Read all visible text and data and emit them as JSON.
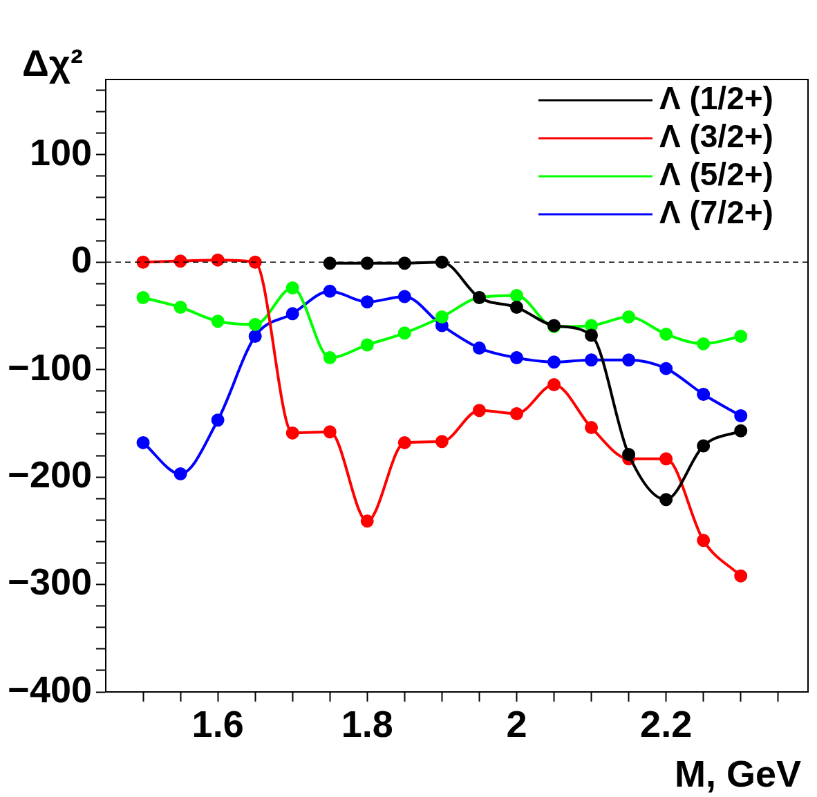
{
  "chart_data": {
    "type": "line",
    "xlabel": "M, GeV",
    "ylabel": "Δχ²",
    "xlim": [
      1.45,
      2.39
    ],
    "ylim": [
      -400,
      170
    ],
    "xticks": [
      {
        "value": 1.5,
        "label": null
      },
      {
        "value": 1.55,
        "label": null
      },
      1.6,
      {
        "value": 1.65,
        "label": null
      },
      {
        "value": 1.7,
        "label": null
      },
      {
        "value": 1.75,
        "label": null
      },
      1.8,
      {
        "value": 1.85,
        "label": null
      },
      {
        "value": 1.9,
        "label": null
      },
      {
        "value": 1.95,
        "label": null
      },
      2,
      {
        "value": 2.05,
        "label": null
      },
      {
        "value": 2.1,
        "label": null
      },
      {
        "value": 2.15,
        "label": null
      },
      2.2,
      {
        "value": 2.25,
        "label": null
      },
      {
        "value": 2.3,
        "label": null
      },
      {
        "value": 2.35,
        "label": null
      }
    ],
    "yticks": [
      {
        "value": -400,
        "label": "−400"
      },
      {
        "value": -380,
        "label": null
      },
      {
        "value": -360,
        "label": null
      },
      {
        "value": -340,
        "label": null
      },
      {
        "value": -320,
        "label": null
      },
      {
        "value": -300,
        "label": "−300"
      },
      {
        "value": -280,
        "label": null
      },
      {
        "value": -260,
        "label": null
      },
      {
        "value": -240,
        "label": null
      },
      {
        "value": -220,
        "label": null
      },
      {
        "value": -200,
        "label": "−200"
      },
      {
        "value": -180,
        "label": null
      },
      {
        "value": -160,
        "label": null
      },
      {
        "value": -140,
        "label": null
      },
      {
        "value": -120,
        "label": null
      },
      {
        "value": -100,
        "label": "−100"
      },
      {
        "value": -80,
        "label": null
      },
      {
        "value": -60,
        "label": null
      },
      {
        "value": -40,
        "label": null
      },
      {
        "value": -20,
        "label": null
      },
      0,
      {
        "value": 20,
        "label": null
      },
      {
        "value": 40,
        "label": null
      },
      {
        "value": 60,
        "label": null
      },
      {
        "value": 80,
        "label": null
      },
      100,
      {
        "value": 120,
        "label": null
      },
      {
        "value": 140,
        "label": null
      },
      {
        "value": 160,
        "label": null
      }
    ],
    "grid": false,
    "legend": "top right",
    "marker": "circle",
    "line_style": "solid",
    "ref_lines": [
      {
        "axis": "y",
        "value": 0,
        "color": "#000000",
        "line_style": "dashed"
      }
    ],
    "series": [
      {
        "name": "Λ (1/2+)",
        "color": "#000000",
        "x": [
          1.75,
          1.8,
          1.85,
          1.9,
          1.95,
          2.0,
          2.05,
          2.1,
          2.15,
          2.2,
          2.25,
          2.3
        ],
        "values": [
          -1,
          -1,
          -1,
          0,
          -33,
          -42,
          -59,
          -68,
          -179,
          -221,
          -171,
          -157
        ]
      },
      {
        "name": "Λ (3/2+)",
        "color": "#ff0000",
        "x": [
          1.5,
          1.55,
          1.6,
          1.65,
          1.7,
          1.75,
          1.8,
          1.85,
          1.9,
          1.95,
          2.0,
          2.05,
          2.1,
          2.15,
          2.2,
          2.25,
          2.3
        ],
        "values": [
          0,
          1,
          2,
          0,
          -159,
          -158,
          -241,
          -168,
          -167,
          -138,
          -141,
          -114,
          -154,
          -183,
          -183,
          -259,
          -292
        ]
      },
      {
        "name": "Λ (5/2+)",
        "color": "#00ff00",
        "x": [
          1.5,
          1.55,
          1.6,
          1.65,
          1.7,
          1.75,
          1.8,
          1.85,
          1.9,
          1.95,
          2.0,
          2.05,
          2.1,
          2.15,
          2.2,
          2.25,
          2.3
        ],
        "values": [
          -33,
          -42,
          -55,
          -58,
          -24,
          -89,
          -77,
          -66,
          -51,
          -33,
          -31,
          -60,
          -59,
          -51,
          -67,
          -76,
          -69
        ]
      },
      {
        "name": "Λ (7/2+)",
        "color": "#0000ff",
        "x": [
          1.5,
          1.55,
          1.6,
          1.65,
          1.7,
          1.75,
          1.8,
          1.85,
          1.9,
          1.95,
          2.0,
          2.05,
          2.1,
          2.15,
          2.2,
          2.25,
          2.3
        ],
        "values": [
          -168,
          -197,
          -147,
          -69,
          -48,
          -27,
          -37,
          -32,
          -59,
          -80,
          -89,
          -93,
          -91,
          -91,
          -99,
          -123,
          -143
        ]
      }
    ]
  }
}
